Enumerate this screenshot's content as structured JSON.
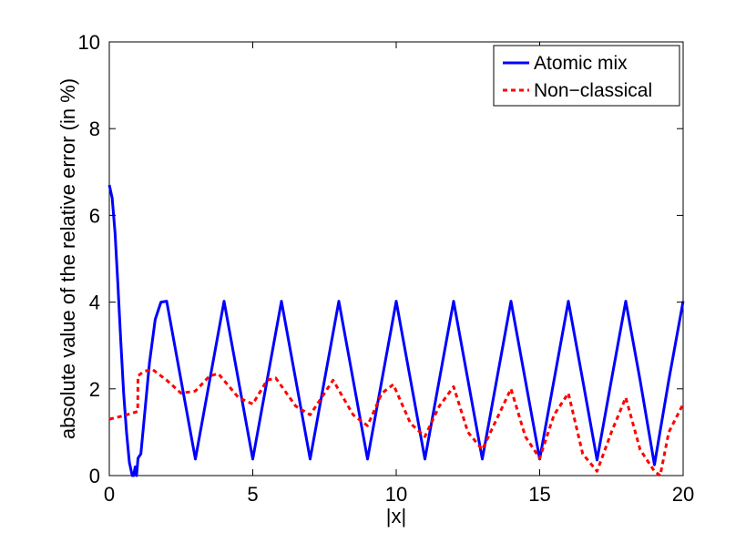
{
  "chart_data": {
    "type": "line",
    "title": "",
    "xlabel": "|x|",
    "ylabel": "absolute value of the relative error (in %)",
    "xlim": [
      0,
      20
    ],
    "ylim": [
      0,
      10
    ],
    "xticks": [
      0,
      5,
      10,
      15,
      20
    ],
    "yticks": [
      0,
      2,
      4,
      6,
      8,
      10
    ],
    "grid": false,
    "legend_position": "top-right",
    "series": [
      {
        "name": "Atomic mix",
        "color": "#0000ff",
        "style": "solid",
        "x": [
          0,
          0.1,
          0.2,
          0.3,
          0.4,
          0.5,
          0.6,
          0.7,
          0.8,
          0.85,
          0.9,
          0.95,
          1.0,
          1.1,
          1.2,
          1.4,
          1.6,
          1.8,
          2.0,
          2.5,
          3.0,
          3.5,
          4.0,
          4.5,
          5.0,
          5.5,
          6.0,
          6.5,
          7.0,
          7.5,
          8.0,
          8.5,
          9.0,
          9.5,
          10.0,
          10.5,
          11.0,
          11.5,
          12.0,
          12.5,
          13.0,
          13.5,
          14.0,
          14.5,
          15.0,
          15.5,
          16.0,
          16.5,
          17.0,
          17.5,
          18.0,
          18.5,
          19.0,
          19.5,
          20.0
        ],
        "y": [
          6.7,
          6.4,
          5.6,
          4.4,
          3.1,
          1.9,
          1.0,
          0.3,
          0.0,
          0.0,
          0.2,
          0.0,
          0.4,
          0.5,
          1.2,
          2.6,
          3.6,
          4.0,
          4.02,
          2.2,
          0.38,
          2.2,
          4.02,
          2.2,
          0.38,
          2.2,
          4.02,
          2.2,
          0.38,
          2.2,
          4.02,
          2.2,
          0.38,
          2.2,
          4.02,
          2.2,
          0.38,
          2.2,
          4.02,
          2.2,
          0.38,
          2.2,
          4.02,
          2.2,
          0.38,
          2.2,
          4.02,
          2.2,
          0.36,
          2.2,
          4.02,
          2.2,
          0.25,
          2.2,
          4.02
        ]
      },
      {
        "name": "Non−classical",
        "color": "#ff0000",
        "style": "dashed",
        "x": [
          0,
          0.5,
          0.99,
          1.0,
          1.2,
          1.5,
          2.0,
          2.5,
          3.0,
          3.5,
          3.8,
          4.5,
          5.0,
          5.5,
          5.8,
          6.5,
          7.0,
          7.5,
          7.8,
          8.5,
          9.0,
          9.5,
          9.9,
          10.5,
          11.0,
          11.5,
          12.0,
          12.5,
          13.0,
          13.5,
          14.0,
          14.5,
          15.0,
          15.5,
          16.0,
          16.5,
          17.0,
          17.5,
          18.0,
          18.5,
          19.0,
          19.2,
          19.5,
          20.0
        ],
        "y": [
          1.3,
          1.38,
          1.48,
          2.3,
          2.4,
          2.45,
          2.2,
          1.9,
          1.95,
          2.3,
          2.35,
          1.8,
          1.65,
          2.2,
          2.25,
          1.6,
          1.4,
          1.9,
          2.2,
          1.4,
          1.15,
          1.9,
          2.1,
          1.2,
          0.9,
          1.6,
          2.05,
          1.0,
          0.6,
          1.3,
          2.0,
          0.9,
          0.4,
          1.4,
          1.9,
          0.5,
          0.1,
          1.0,
          1.8,
          0.6,
          0.1,
          0.0,
          1.0,
          1.65
        ]
      }
    ]
  }
}
